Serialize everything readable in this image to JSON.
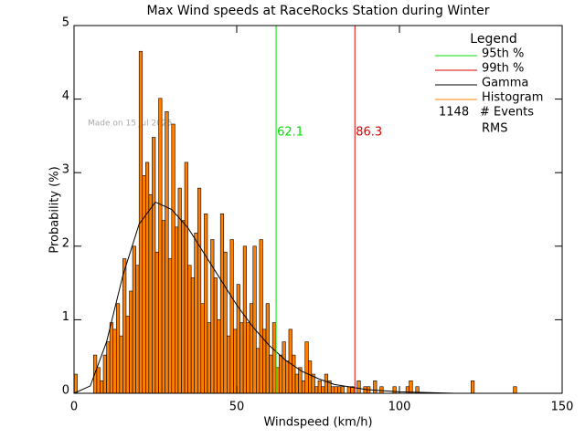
{
  "chart_data": {
    "type": "histogram",
    "title": "Max Wind speeds at RaceRocks Station during Winter",
    "xlabel": "Windspeed (km/h)",
    "ylabel": "Probability (%)",
    "watermark": "Made on 15 Jul 2025",
    "xlim": [
      0,
      150
    ],
    "xticks": [
      0,
      50,
      100,
      150
    ],
    "ylim": [
      0,
      5
    ],
    "yticks": [
      0,
      1,
      2,
      3,
      4,
      5
    ],
    "bins": [
      0,
      1,
      2,
      3,
      4,
      5,
      6,
      7,
      8,
      9,
      10,
      11,
      12,
      13,
      14,
      15,
      16,
      17,
      18,
      19,
      20,
      21,
      22,
      23,
      24,
      25,
      26,
      27,
      28,
      29,
      30,
      31,
      32,
      33,
      34,
      35,
      36,
      37,
      38,
      39,
      40,
      41,
      42,
      43,
      44,
      45,
      46,
      47,
      48,
      49,
      50,
      51,
      52,
      53,
      54,
      55,
      56,
      57,
      58,
      59,
      60,
      61,
      62,
      63,
      64,
      65,
      66,
      67,
      68,
      69,
      70,
      71,
      72,
      73,
      74,
      75,
      76,
      77,
      78,
      79,
      80,
      81,
      82,
      83,
      84,
      85,
      86,
      87,
      88,
      89,
      90,
      91,
      92,
      93,
      94,
      95,
      96,
      97,
      98,
      99,
      100,
      101,
      102,
      103,
      104,
      105,
      106,
      107,
      108,
      109,
      110,
      111,
      112,
      113,
      114,
      115,
      116,
      117,
      118,
      119,
      120,
      121,
      122,
      123,
      124,
      125,
      126,
      127,
      128,
      129,
      130,
      131,
      132,
      133,
      134,
      135,
      136
    ],
    "values": [
      0.26,
      0,
      0,
      0,
      0,
      0,
      0.52,
      0.35,
      0.17,
      0.52,
      0.7,
      0.96,
      0.87,
      1.22,
      0.78,
      1.83,
      1.05,
      1.39,
      2.0,
      1.74,
      4.65,
      2.96,
      3.14,
      2.7,
      3.48,
      1.92,
      4.01,
      2.35,
      3.83,
      1.83,
      3.66,
      2.26,
      2.79,
      2.35,
      3.14,
      1.74,
      1.57,
      2.18,
      2.79,
      1.22,
      2.44,
      0.96,
      2.09,
      1.57,
      1.0,
      2.44,
      1.92,
      0.78,
      2.09,
      0.87,
      1.48,
      0.96,
      2.0,
      0.96,
      1.22,
      2.0,
      0.61,
      2.09,
      0.87,
      1.22,
      0.52,
      0.96,
      0.35,
      0.52,
      0.7,
      0.44,
      0.87,
      0.52,
      0.26,
      0.35,
      0.17,
      0.7,
      0.44,
      0.26,
      0.09,
      0.17,
      0.09,
      0.26,
      0.17,
      0.09,
      0.09,
      0.09,
      0.09,
      0,
      0.09,
      0.09,
      0,
      0.17,
      0,
      0.09,
      0.09,
      0,
      0.17,
      0,
      0.09,
      0,
      0,
      0,
      0.09,
      0,
      0,
      0,
      0.09,
      0.17,
      0,
      0.09,
      0,
      0,
      0,
      0,
      0,
      0,
      0,
      0,
      0,
      0,
      0,
      0,
      0,
      0,
      0,
      0,
      0.17,
      0,
      0,
      0,
      0,
      0,
      0,
      0,
      0,
      0,
      0,
      0,
      0,
      0.09
    ],
    "color": "#ff8000",
    "legend": {
      "title": "Legend",
      "events": 1148,
      "events_label": "# Events",
      "rms_label": "RMS"
    },
    "histogram_name": "Histogram",
    "gamma": {
      "name": "Gamma",
      "color": "#000000",
      "x": [
        0,
        5,
        10,
        15,
        20,
        25,
        30,
        35,
        40,
        45,
        50,
        55,
        60,
        65,
        70,
        75,
        80,
        90,
        100,
        117
      ],
      "y": [
        0,
        0.1,
        0.7,
        1.6,
        2.3,
        2.6,
        2.5,
        2.25,
        1.9,
        1.55,
        1.2,
        0.9,
        0.65,
        0.45,
        0.3,
        0.2,
        0.12,
        0.05,
        0.02,
        0
      ]
    },
    "thresholds": [
      {
        "name": "95th %",
        "color": "#00dd00",
        "value": 62.1
      },
      {
        "name": "99th %",
        "color": "#dd0000",
        "value": 86.3
      }
    ]
  }
}
